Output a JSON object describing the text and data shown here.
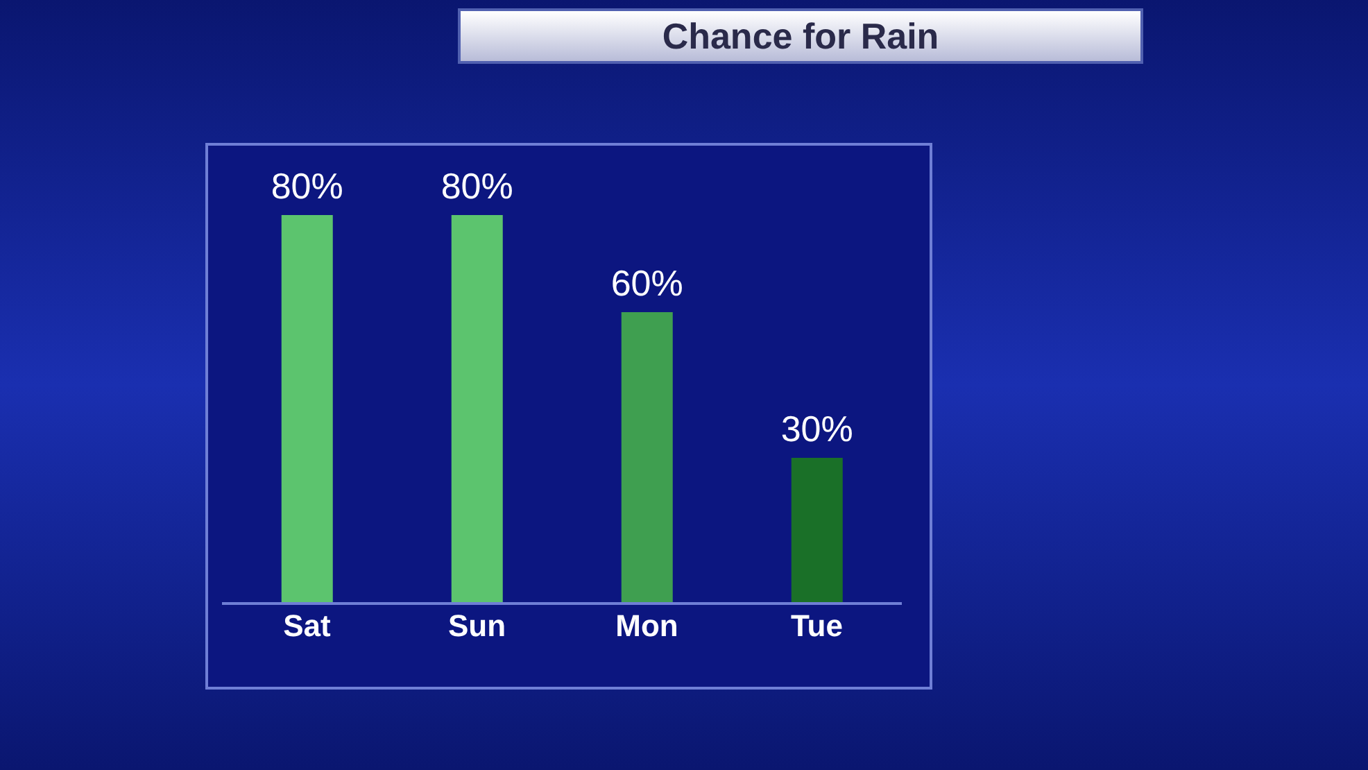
{
  "chart_data": {
    "type": "bar",
    "title": "Chance for Rain",
    "categories": [
      "Sat",
      "Sun",
      "Mon",
      "Tue"
    ],
    "values": [
      80,
      80,
      60,
      30
    ],
    "colors": [
      "#5cc46e",
      "#5cc46e",
      "#3f9f50",
      "#1a7028"
    ],
    "value_labels": [
      "80%",
      "80%",
      "60%",
      "30%"
    ],
    "grid": false
  }
}
